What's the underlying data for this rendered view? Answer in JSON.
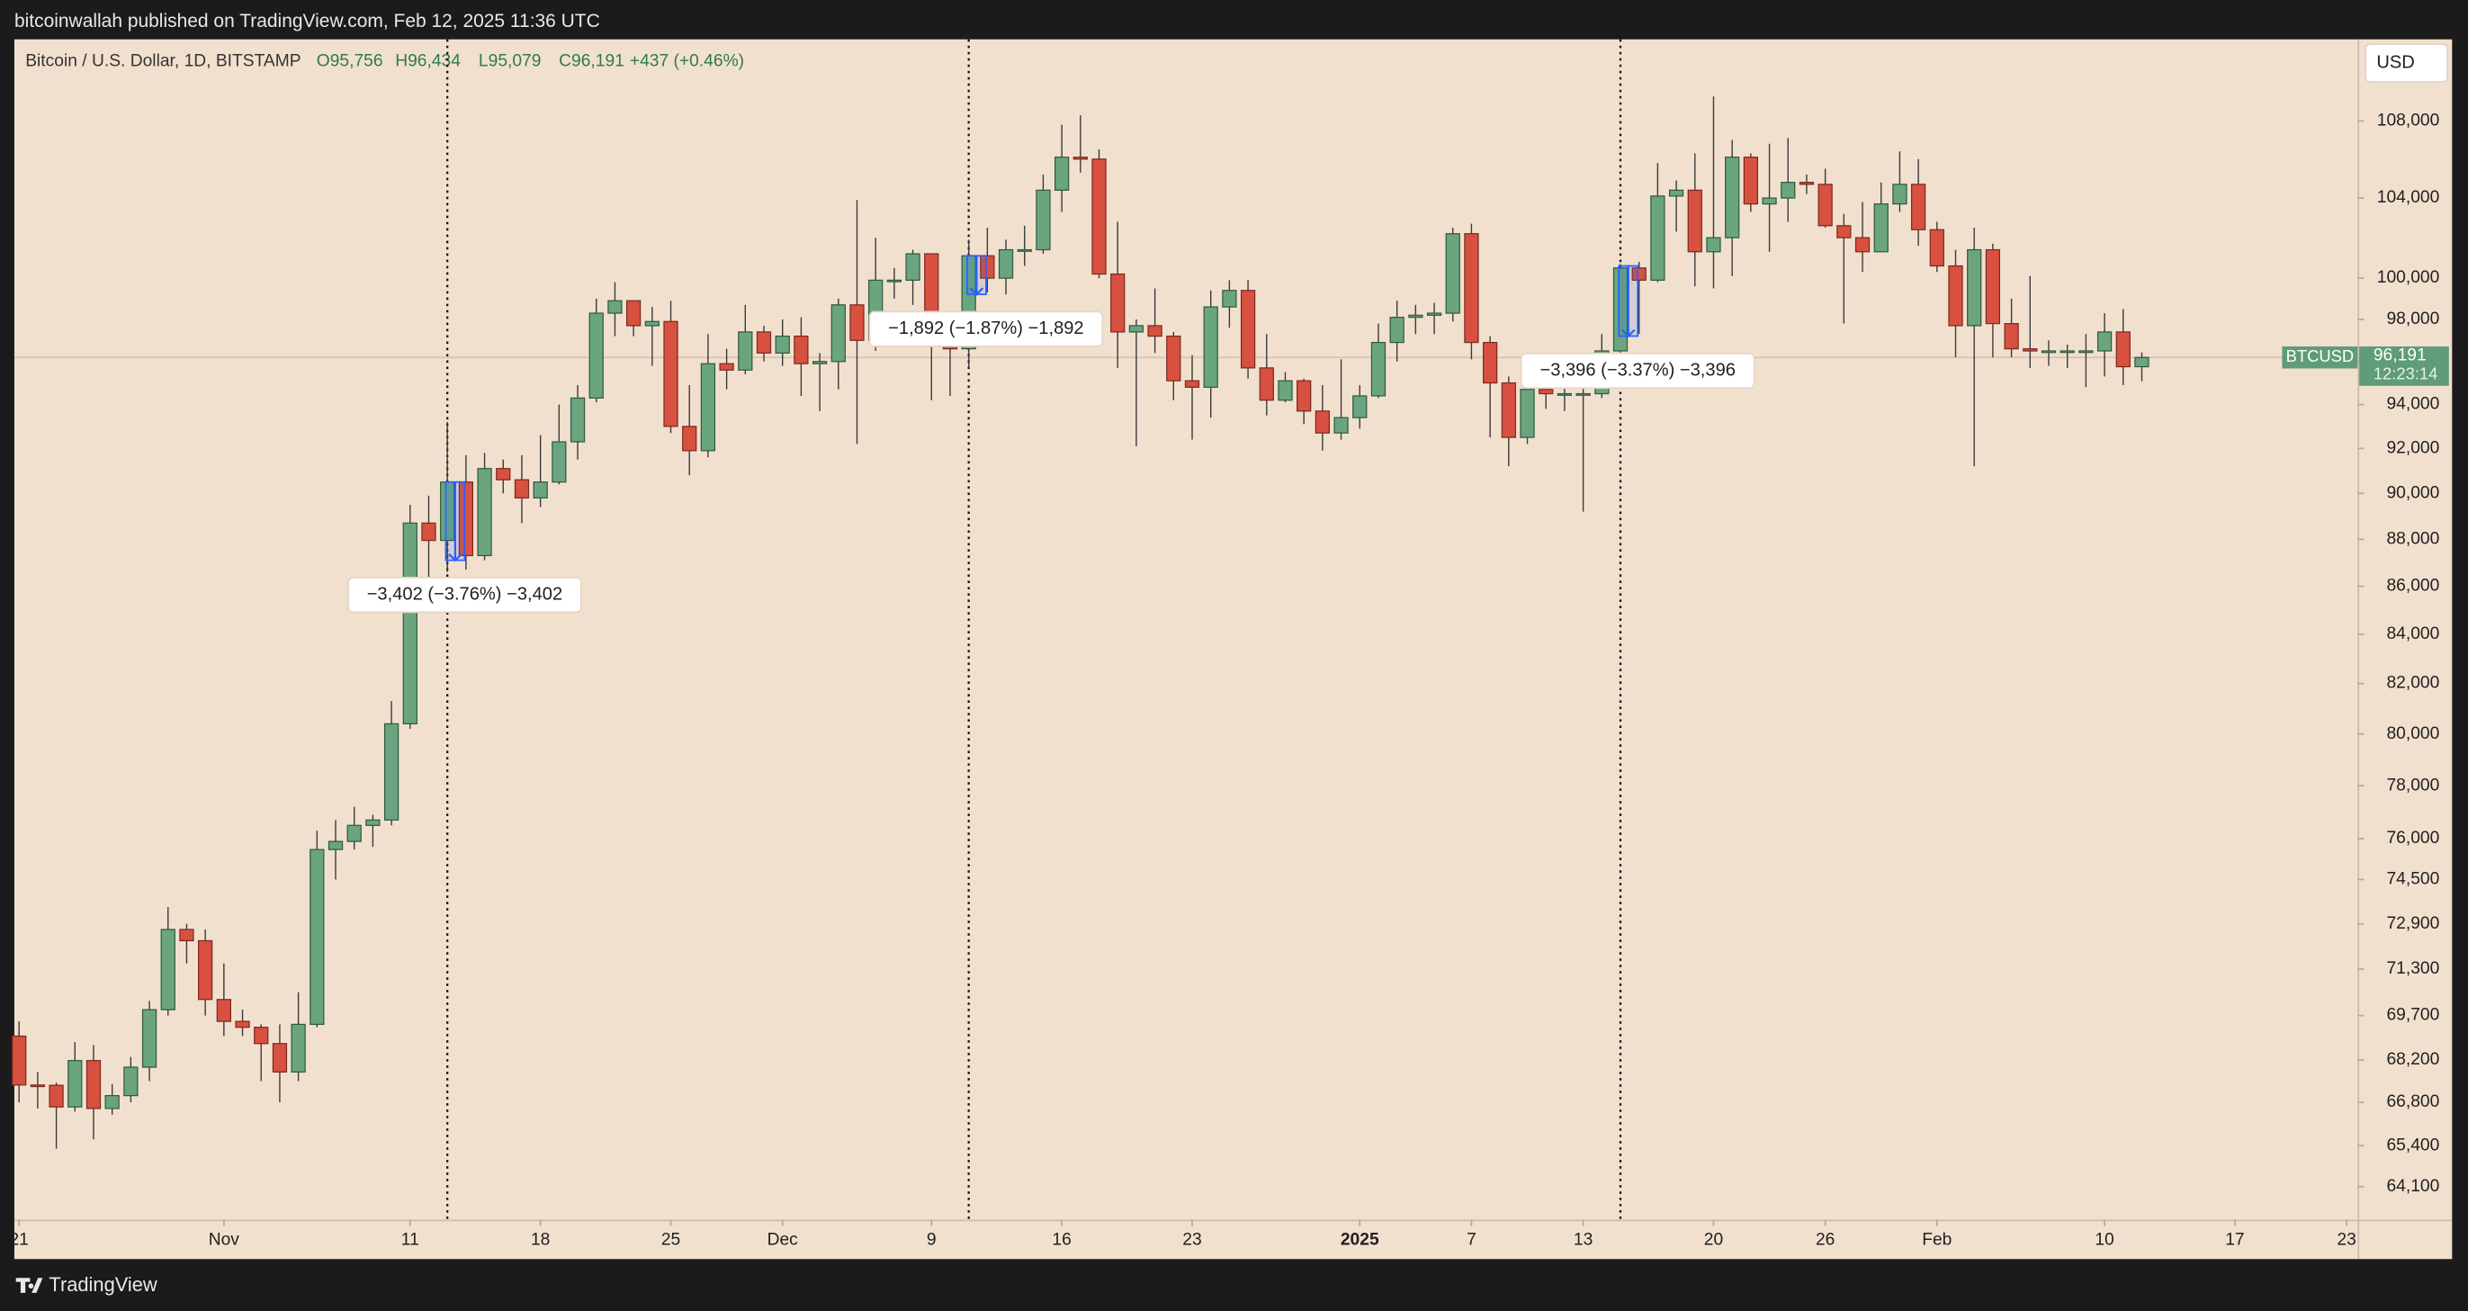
{
  "header": {
    "published": "bitcoinwallah published on TradingView.com, Feb 12, 2025 11:36 UTC",
    "brand": "TradingView"
  },
  "chart_data": {
    "type": "candlestick",
    "title": "Bitcoin / U.S. Dollar, 1D, BITSTAMP",
    "ohlc_legend": [
      "O95,756",
      "H96,434",
      "L95,079",
      "C96,191",
      "+437 (+0.46%)"
    ],
    "currency": "USD",
    "log_scale": true,
    "up_color": "#6aa57f",
    "down_color": "#d8503f",
    "x": [
      "10-21",
      "10-22",
      "10-23",
      "10-24",
      "10-25",
      "10-26",
      "10-27",
      "10-28",
      "10-29",
      "10-30",
      "10-31",
      "11-01",
      "11-02",
      "11-03",
      "11-04",
      "11-05",
      "11-06",
      "11-07",
      "11-08",
      "11-09",
      "11-10",
      "11-11",
      "11-12",
      "11-13",
      "11-14",
      "11-15",
      "11-16",
      "11-17",
      "11-18",
      "11-19",
      "11-20",
      "11-21",
      "11-22",
      "11-23",
      "11-24",
      "11-25",
      "11-26",
      "11-27",
      "11-28",
      "11-29",
      "11-30",
      "12-01",
      "12-02",
      "12-03",
      "12-04",
      "12-05",
      "12-06",
      "12-07",
      "12-08",
      "12-09",
      "12-10",
      "12-11",
      "12-12",
      "12-13",
      "12-14",
      "12-15",
      "12-16",
      "12-17",
      "12-18",
      "12-19",
      "12-20",
      "12-21",
      "12-22",
      "12-23",
      "12-24",
      "12-25",
      "12-26",
      "12-27",
      "12-28",
      "12-29",
      "12-30",
      "12-31",
      "01-01",
      "01-02",
      "01-03",
      "01-04",
      "01-05",
      "01-06",
      "01-07",
      "01-08",
      "01-09",
      "01-10",
      "01-11",
      "01-12",
      "01-13",
      "01-14",
      "01-15",
      "01-16",
      "01-17",
      "01-18",
      "01-19",
      "01-20",
      "01-21",
      "01-22",
      "01-23",
      "01-24",
      "01-25",
      "01-26",
      "01-27",
      "01-28",
      "01-29",
      "01-30",
      "01-31",
      "02-01",
      "02-02",
      "02-03",
      "02-04",
      "02-05",
      "02-06",
      "02-07",
      "02-08",
      "02-09",
      "02-10",
      "02-11",
      "02-12"
    ],
    "open": [
      69000,
      67370,
      67360,
      66650,
      68180,
      66600,
      67020,
      67960,
      69900,
      72700,
      72300,
      70250,
      69500,
      69300,
      68750,
      67800,
      69400,
      75600,
      75900,
      76500,
      76700,
      80400,
      88700,
      87950,
      90500,
      87300,
      91100,
      90600,
      89800,
      90500,
      92300,
      94300,
      98300,
      98900,
      97700,
      97900,
      93000,
      91900,
      95900,
      95600,
      97400,
      96400,
      97200,
      95900,
      96000,
      98700,
      97000,
      99900,
      99900,
      101200,
      97400,
      96600,
      101100,
      100000,
      101400,
      101400,
      104400,
      106100,
      106000,
      100200,
      97400,
      97700,
      97200,
      95100,
      94800,
      98600,
      99400,
      95700,
      94200,
      95100,
      93700,
      92700,
      93400,
      94400,
      96900,
      98100,
      98200,
      98300,
      102200,
      96900,
      95000,
      92500,
      94700,
      94500,
      94500,
      94500,
      96500,
      100500,
      99900,
      104100,
      104400,
      101300,
      102000,
      106100,
      103700,
      104000,
      104800,
      104700,
      102600,
      102000,
      101300,
      103700,
      104700,
      102400,
      100600,
      97700,
      101400,
      97800,
      96600,
      96500,
      96500,
      96500,
      96500,
      97400,
      95756
    ],
    "high": [
      69500,
      67800,
      67450,
      68800,
      68700,
      67400,
      68300,
      70200,
      73500,
      72900,
      72700,
      71500,
      69900,
      69400,
      69400,
      70500,
      76300,
      76700,
      77200,
      76900,
      81300,
      89500,
      89900,
      93200,
      91700,
      91800,
      91500,
      91700,
      92600,
      94000,
      94900,
      99000,
      99800,
      98900,
      98600,
      98900,
      94900,
      97300,
      96600,
      98700,
      97700,
      98000,
      98100,
      96400,
      99000,
      103900,
      102000,
      100500,
      101400,
      101200,
      98200,
      101900,
      102500,
      101900,
      102600,
      105200,
      107800,
      108300,
      106500,
      102800,
      98000,
      99500,
      97400,
      96300,
      99400,
      99900,
      99900,
      97300,
      95500,
      95200,
      94900,
      96100,
      94900,
      97800,
      98900,
      98700,
      98800,
      102500,
      102700,
      97200,
      95300,
      95900,
      94900,
      95300,
      95800,
      97300,
      100700,
      100800,
      105800,
      104900,
      106300,
      109300,
      107000,
      106300,
      106800,
      107100,
      105200,
      105500,
      103200,
      103800,
      104800,
      106400,
      106000,
      102800,
      101400,
      102500,
      101700,
      99000,
      100100,
      97000,
      96800,
      97300,
      98300,
      98500,
      96434
    ],
    "low": [
      66800,
      66600,
      65300,
      66500,
      65600,
      66400,
      66800,
      67500,
      69700,
      71500,
      69700,
      69000,
      69000,
      67500,
      66800,
      67500,
      69300,
      74500,
      75600,
      75700,
      76500,
      80200,
      85100,
      86600,
      86700,
      87100,
      90000,
      88700,
      89400,
      90400,
      91500,
      94100,
      97200,
      97200,
      95800,
      92700,
      90800,
      91600,
      94700,
      95400,
      96000,
      95800,
      94400,
      93700,
      94700,
      92200,
      96500,
      99000,
      98700,
      94200,
      94400,
      95700,
      99300,
      99200,
      100600,
      101200,
      103300,
      105300,
      100000,
      95700,
      92100,
      96400,
      94200,
      92400,
      93400,
      97600,
      95200,
      93500,
      94100,
      93100,
      91900,
      92400,
      92900,
      94300,
      96000,
      97300,
      97300,
      97900,
      96100,
      92500,
      91200,
      92200,
      93800,
      93700,
      89200,
      94300,
      96400,
      97300,
      99800,
      102300,
      99600,
      99500,
      100100,
      103300,
      101300,
      102800,
      104200,
      102500,
      97800,
      100300,
      101300,
      103300,
      101600,
      100300,
      96200,
      91200,
      96200,
      96200,
      95700,
      95800,
      95700,
      94800,
      95300,
      94900,
      95079
    ],
    "close": [
      67370,
      67360,
      66650,
      68180,
      66600,
      67020,
      67960,
      69900,
      72700,
      72300,
      70250,
      69500,
      69300,
      68750,
      67800,
      69400,
      75600,
      75900,
      76500,
      76700,
      80400,
      88700,
      87950,
      90500,
      87300,
      91100,
      90600,
      89800,
      90500,
      92300,
      94300,
      98300,
      98900,
      97700,
      97900,
      93000,
      91900,
      95900,
      95600,
      97400,
      96400,
      97200,
      95900,
      96000,
      98700,
      97000,
      99900,
      99900,
      101200,
      97400,
      96600,
      101100,
      100000,
      101400,
      101400,
      104400,
      106100,
      106000,
      100200,
      97400,
      97700,
      97200,
      95100,
      94800,
      98600,
      99400,
      95700,
      94200,
      95100,
      93700,
      92700,
      93400,
      94400,
      96900,
      98100,
      98200,
      98300,
      102200,
      96900,
      95000,
      92500,
      94700,
      94500,
      94500,
      94500,
      96500,
      100500,
      99900,
      104100,
      104400,
      101300,
      102000,
      106100,
      103700,
      104000,
      104800,
      104700,
      102600,
      102000,
      101300,
      103700,
      104700,
      102400,
      100600,
      97700,
      101400,
      97800,
      96600,
      96500,
      96500,
      96500,
      96500,
      97400,
      95756,
      96191
    ],
    "xlim": [
      "10-21",
      "02-23"
    ],
    "xticks": [
      {
        "value": "10-21",
        "label": "21"
      },
      {
        "value": "11-01",
        "label": "Nov"
      },
      {
        "value": "11-11",
        "label": "11"
      },
      {
        "value": "11-18",
        "label": "18"
      },
      {
        "value": "11-25",
        "label": "25"
      },
      {
        "value": "12-01",
        "label": "Dec"
      },
      {
        "value": "12-09",
        "label": "9"
      },
      {
        "value": "12-16",
        "label": "16"
      },
      {
        "value": "12-23",
        "label": "23"
      },
      {
        "value": "01-01",
        "label": "2025"
      },
      {
        "value": "01-07",
        "label": "7"
      },
      {
        "value": "01-13",
        "label": "13"
      },
      {
        "value": "01-20",
        "label": "20"
      },
      {
        "value": "01-26",
        "label": "26"
      },
      {
        "value": "02-01",
        "label": "Feb"
      },
      {
        "value": "02-10",
        "label": "10"
      },
      {
        "value": "02-17",
        "label": "17"
      },
      {
        "value": "02-23",
        "label": "23"
      }
    ],
    "ylim": [
      63070,
      112400
    ],
    "yticks": [
      {
        "value": 64100,
        "label": "64,100"
      },
      {
        "value": 65400,
        "label": "65,400"
      },
      {
        "value": 66800,
        "label": "66,800"
      },
      {
        "value": 68200,
        "label": "68,200"
      },
      {
        "value": 69700,
        "label": "69,700"
      },
      {
        "value": 71300,
        "label": "71,300"
      },
      {
        "value": 72900,
        "label": "72,900"
      },
      {
        "value": 74500,
        "label": "74,500"
      },
      {
        "value": 76000,
        "label": "76,000"
      },
      {
        "value": 78000,
        "label": "78,000"
      },
      {
        "value": 80000,
        "label": "80,000"
      },
      {
        "value": 82000,
        "label": "82,000"
      },
      {
        "value": 84000,
        "label": "84,000"
      },
      {
        "value": 86000,
        "label": "86,000"
      },
      {
        "value": 88000,
        "label": "88,000"
      },
      {
        "value": 90000,
        "label": "90,000"
      },
      {
        "value": 92000,
        "label": "92,000"
      },
      {
        "value": 94000,
        "label": "94,000"
      },
      {
        "value": 96000,
        "label": "96,000"
      },
      {
        "value": 98000,
        "label": "98,000"
      },
      {
        "value": 100000,
        "label": "100,000"
      },
      {
        "value": 104000,
        "label": "104,000"
      },
      {
        "value": 108000,
        "label": "108,000"
      }
    ],
    "price_label": {
      "symbol": "BTCUSD",
      "price": "96,191",
      "countdown": "12:23:14"
    },
    "annotations": [
      {
        "x": "11-13",
        "from": 90502,
        "to": 87100,
        "text": "−3,402 (−3.76%) −3,402"
      },
      {
        "x": "12-11",
        "from": 101100,
        "to": 99208,
        "text": "−1,892 (−1.87%) −1,892"
      },
      {
        "x": "01-15",
        "from": 100600,
        "to": 97204,
        "text": "−3,396 (−3.37%) −3,396"
      }
    ]
  }
}
